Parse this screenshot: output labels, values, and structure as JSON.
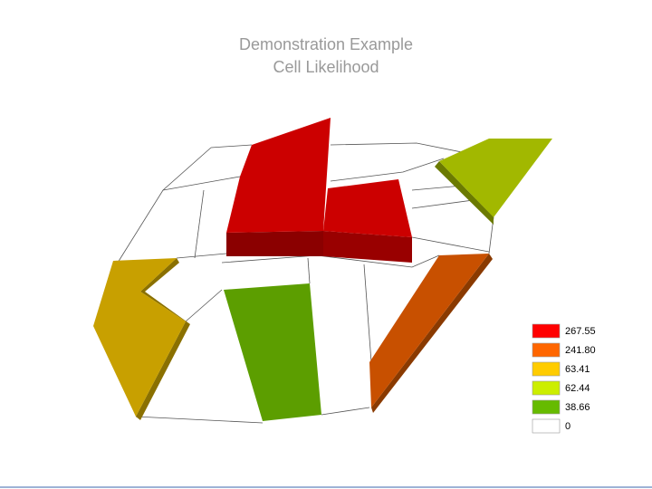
{
  "title": [
    "Demonstration Example",
    "Cell Likelihood"
  ],
  "legend": [
    {
      "label": "267.55",
      "color": "#ff0000"
    },
    {
      "label": "241.80",
      "color": "#ff6600"
    },
    {
      "label": "63.41",
      "color": "#ffcc00"
    },
    {
      "label": "62.44",
      "color": "#ccee00"
    },
    {
      "label": "38.66",
      "color": "#66bb00"
    },
    {
      "label": "0",
      "color": "#ffffff"
    }
  ]
}
